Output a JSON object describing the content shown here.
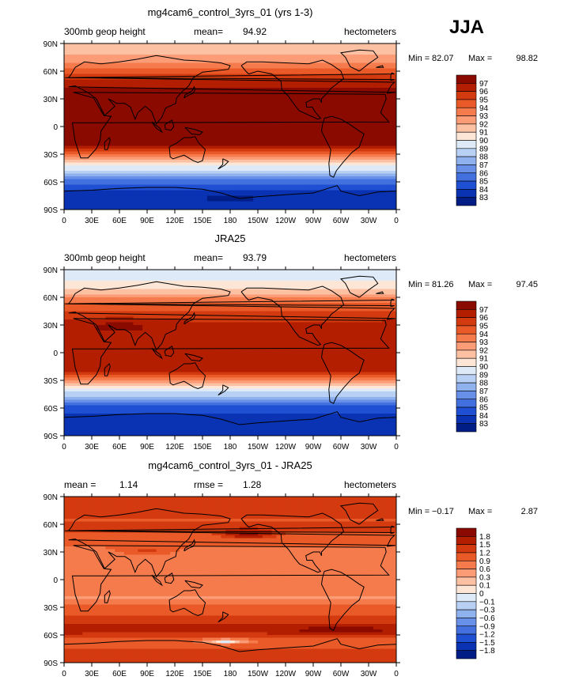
{
  "season_label": "JJA",
  "tick_labels": {
    "lon": [
      "0",
      "30E",
      "60E",
      "90E",
      "120E",
      "150E",
      "180",
      "150W",
      "120W",
      "90W",
      "60W",
      "30W",
      "0"
    ],
    "lat": [
      "90N",
      "60N",
      "30N",
      "0",
      "30S",
      "60S",
      "90S"
    ]
  },
  "panels": [
    {
      "title": "mg4cam6_control_3yrs_01 (yrs 1-3)",
      "left_text": "300mb geop height",
      "center_label": "mean=",
      "center_value": "94.92",
      "right_text": "hectometers",
      "min_label": "Min =",
      "min_value": "82.07",
      "max_label": "Max =",
      "max_value": "98.82",
      "colorbar_labels": [
        "97",
        "96",
        "95",
        "94",
        "93",
        "92",
        "91",
        "90",
        "89",
        "88",
        "87",
        "86",
        "85",
        "84",
        "83"
      ],
      "colorbar_colors": [
        "#8a0a00",
        "#b31e00",
        "#d43a0f",
        "#ea5a28",
        "#f67b4c",
        "#fb9c77",
        "#fcc0a2",
        "#fde6d6",
        "#dfeaf8",
        "#b7d0f4",
        "#8fb1ee",
        "#6990e8",
        "#4270df",
        "#1f4fd2",
        "#0a33b4",
        "#001d86"
      ],
      "profile": [
        [
          90,
          91.3
        ],
        [
          80,
          91.6
        ],
        [
          70,
          93
        ],
        [
          60,
          94.5
        ],
        [
          50,
          96
        ],
        [
          40,
          97.4
        ],
        [
          30,
          97.8
        ],
        [
          0,
          98
        ],
        [
          -20,
          97.5
        ],
        [
          -30,
          94.5
        ],
        [
          -40,
          91
        ],
        [
          -50,
          88
        ],
        [
          -60,
          85.5
        ],
        [
          -70,
          84
        ],
        [
          -80,
          83.5
        ],
        [
          -90,
          84
        ]
      ],
      "blobs": [
        {
          "lon": 180,
          "lat": -78,
          "rlon": 50,
          "rlat": 8,
          "value": 82.5
        }
      ]
    },
    {
      "title": "JRA25",
      "left_text": "300mb geop height",
      "center_label": "mean=",
      "center_value": "93.79",
      "right_text": "hectometers",
      "min_label": "Min =",
      "min_value": "81.26",
      "max_label": "Max =",
      "max_value": "97.45",
      "colorbar_labels": [
        "97",
        "96",
        "95",
        "94",
        "93",
        "92",
        "91",
        "90",
        "89",
        "88",
        "87",
        "86",
        "85",
        "84",
        "83"
      ],
      "colorbar_colors": [
        "#8a0a00",
        "#b31e00",
        "#d43a0f",
        "#ea5a28",
        "#f67b4c",
        "#fb9c77",
        "#fcc0a2",
        "#fde6d6",
        "#dfeaf8",
        "#b7d0f4",
        "#8fb1ee",
        "#6990e8",
        "#4270df",
        "#1f4fd2",
        "#0a33b4",
        "#001d86"
      ],
      "profile": [
        [
          90,
          89.5
        ],
        [
          80,
          89.8
        ],
        [
          70,
          91
        ],
        [
          60,
          92.8
        ],
        [
          50,
          94.5
        ],
        [
          40,
          95.6
        ],
        [
          30,
          96.3
        ],
        [
          10,
          96.5
        ],
        [
          -20,
          96
        ],
        [
          -30,
          93
        ],
        [
          -40,
          90
        ],
        [
          -50,
          87
        ],
        [
          -60,
          84.5
        ],
        [
          -70,
          83.5
        ],
        [
          -80,
          83.2
        ],
        [
          -90,
          83.5
        ]
      ],
      "blobs": [
        {
          "lon": 60,
          "lat": 28,
          "rlon": 55,
          "rlat": 10,
          "value": 97.4
        },
        {
          "lon": 300,
          "lat": 10,
          "rlon": 45,
          "rlat": 12,
          "value": 96.2
        }
      ]
    },
    {
      "title": "mg4cam6_control_3yrs_01 - JRA25",
      "left_text": "mean =",
      "left_value": "1.14",
      "center_label": "rmse =",
      "center_value": "1.28",
      "right_text": "hectometers",
      "min_label": "Min =",
      "min_value": "−0.17",
      "max_label": "Max =",
      "max_value": "2.87",
      "colorbar_labels": [
        "1.8",
        "1.5",
        "1.2",
        "0.9",
        "0.6",
        "0.3",
        "0.1",
        "0",
        "−0.1",
        "−0.3",
        "−0.6",
        "−0.9",
        "−1.2",
        "−1.5",
        "−1.8"
      ],
      "colorbar_colors": [
        "#8a0a00",
        "#b31e00",
        "#d43a0f",
        "#ea5a28",
        "#f67b4c",
        "#fb9c77",
        "#fcc0a2",
        "#fde6d6",
        "#dfeaf8",
        "#b7d0f4",
        "#8fb1ee",
        "#6990e8",
        "#4270df",
        "#1f4fd2",
        "#0a33b4",
        "#001d86"
      ],
      "profile": [
        [
          90,
          1.5
        ],
        [
          75,
          1.35
        ],
        [
          65,
          1.15
        ],
        [
          55,
          1.3
        ],
        [
          45,
          0.95
        ],
        [
          35,
          0.9
        ],
        [
          20,
          0.8
        ],
        [
          10,
          0.7
        ],
        [
          0,
          0.75
        ],
        [
          -10,
          0.7
        ],
        [
          -20,
          0.55
        ],
        [
          -30,
          1
        ],
        [
          -40,
          1.2
        ],
        [
          -50,
          1.55
        ],
        [
          -55,
          1.7
        ],
        [
          -65,
          1.1
        ],
        [
          -75,
          1.2
        ],
        [
          -90,
          1.3
        ]
      ],
      "blobs": [
        {
          "lon": 175,
          "lat": -67,
          "rlon": 40,
          "rlat": 4,
          "value": -0.1
        },
        {
          "lon": 300,
          "lat": -55,
          "rlon": 60,
          "rlat": 6,
          "value": 2.1
        },
        {
          "lon": 200,
          "lat": 50,
          "rlon": 40,
          "rlat": 8,
          "value": 1.9
        },
        {
          "lon": 90,
          "lat": 32,
          "rlon": 30,
          "rlat": 6,
          "value": 1.25
        }
      ]
    }
  ]
}
